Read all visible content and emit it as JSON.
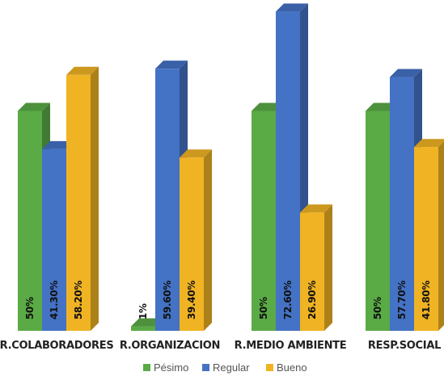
{
  "chart_data": {
    "type": "bar",
    "categories": [
      "R.COLABORADORES",
      "R.ORGANIZACION",
      "R.MEDIO AMBIENTE",
      "RESP.SOCIAL"
    ],
    "series": [
      {
        "name": "Pésimo",
        "color": "#5aaa46",
        "values": [
          50,
          1,
          50,
          50
        ],
        "labels": [
          "50%",
          "1%",
          "50%",
          "50%"
        ]
      },
      {
        "name": "Regular",
        "color": "#4472c4",
        "values": [
          41.3,
          59.6,
          72.6,
          57.7
        ],
        "labels": [
          "41.30%",
          "59.60%",
          "72.60%",
          "57.70%"
        ]
      },
      {
        "name": "Bueno",
        "color": "#f0b323",
        "values": [
          58.2,
          39.4,
          26.9,
          41.8
        ],
        "labels": [
          "58.20%",
          "39.40%",
          "26.90%",
          "41.80%"
        ]
      }
    ],
    "ylim": [
      0,
      80
    ],
    "grid": false,
    "legend": "bottom-center",
    "bar_style": "3d"
  }
}
